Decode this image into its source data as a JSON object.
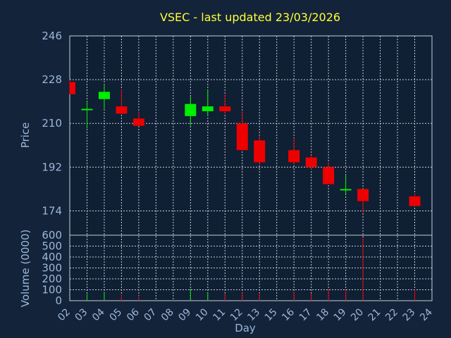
{
  "title": "VSEC - last updated 23/03/2026",
  "colors": {
    "background": "#13233a",
    "plot_bg": "#0f1f34",
    "up": "#00ee00",
    "down": "#ee0000",
    "text": "#9bb8d8",
    "title": "#ffff33",
    "grid": "#c8cdd4"
  },
  "chart_data": [
    {
      "type": "candlestick",
      "ylabel": "Price",
      "yticks": [
        174,
        192,
        210,
        228,
        246
      ],
      "ylim": [
        164,
        246
      ],
      "grid": true,
      "categories": [
        "02",
        "03",
        "04",
        "05",
        "06",
        "07",
        "08",
        "09",
        "10",
        "11",
        "12",
        "13",
        "15",
        "16",
        "17",
        "18",
        "19",
        "20",
        "21",
        "22",
        "23",
        "24"
      ],
      "candles": [
        {
          "day": "02",
          "open": 227,
          "high": 228,
          "low": 222,
          "close": 222
        },
        {
          "day": "03",
          "open": 216,
          "high": 219,
          "low": 208,
          "close": 216
        },
        {
          "day": "04",
          "open": 220,
          "high": 226,
          "low": 216,
          "close": 223
        },
        {
          "day": "05",
          "open": 217,
          "high": 224,
          "low": 214,
          "close": 214
        },
        {
          "day": "06",
          "open": 212,
          "high": 215,
          "low": 209,
          "close": 209
        },
        {
          "day": "09",
          "open": 213,
          "high": 221,
          "low": 209,
          "close": 218
        },
        {
          "day": "10",
          "open": 215,
          "high": 224,
          "low": 213,
          "close": 217
        },
        {
          "day": "11",
          "open": 217,
          "high": 222,
          "low": 214,
          "close": 215
        },
        {
          "day": "12",
          "open": 210,
          "high": 215,
          "low": 199,
          "close": 199
        },
        {
          "day": "13",
          "open": 203,
          "high": 205,
          "low": 193,
          "close": 194
        },
        {
          "day": "16",
          "open": 199,
          "high": 204,
          "low": 193,
          "close": 194
        },
        {
          "day": "17",
          "open": 196,
          "high": 197,
          "low": 191,
          "close": 192
        },
        {
          "day": "18",
          "open": 192,
          "high": 194,
          "low": 185,
          "close": 185
        },
        {
          "day": "19",
          "open": 183,
          "high": 189,
          "low": 181,
          "close": 183
        },
        {
          "day": "20",
          "open": 183,
          "high": 183,
          "low": 173,
          "close": 178
        },
        {
          "day": "23",
          "open": 180,
          "high": 181,
          "low": 176,
          "close": 176
        }
      ]
    },
    {
      "type": "bar",
      "ylabel": "Volume (0000)",
      "xlabel": "Day",
      "yticks": [
        0,
        100,
        200,
        300,
        400,
        500,
        600
      ],
      "ylim": [
        0,
        600
      ],
      "grid": true,
      "volumes": [
        {
          "day": "03",
          "value": 60,
          "dir": "up"
        },
        {
          "day": "04",
          "value": 70,
          "dir": "up"
        },
        {
          "day": "05",
          "value": 55,
          "dir": "down"
        },
        {
          "day": "06",
          "value": 45,
          "dir": "down"
        },
        {
          "day": "09",
          "value": 110,
          "dir": "up"
        },
        {
          "day": "10",
          "value": 70,
          "dir": "up"
        },
        {
          "day": "11",
          "value": 60,
          "dir": "down"
        },
        {
          "day": "12",
          "value": 75,
          "dir": "down"
        },
        {
          "day": "13",
          "value": 70,
          "dir": "down"
        },
        {
          "day": "16",
          "value": 80,
          "dir": "down"
        },
        {
          "day": "17",
          "value": 65,
          "dir": "down"
        },
        {
          "day": "18",
          "value": 110,
          "dir": "down"
        },
        {
          "day": "19",
          "value": 100,
          "dir": "down"
        },
        {
          "day": "20",
          "value": 580,
          "dir": "down"
        },
        {
          "day": "23",
          "value": 100,
          "dir": "down"
        }
      ]
    }
  ]
}
